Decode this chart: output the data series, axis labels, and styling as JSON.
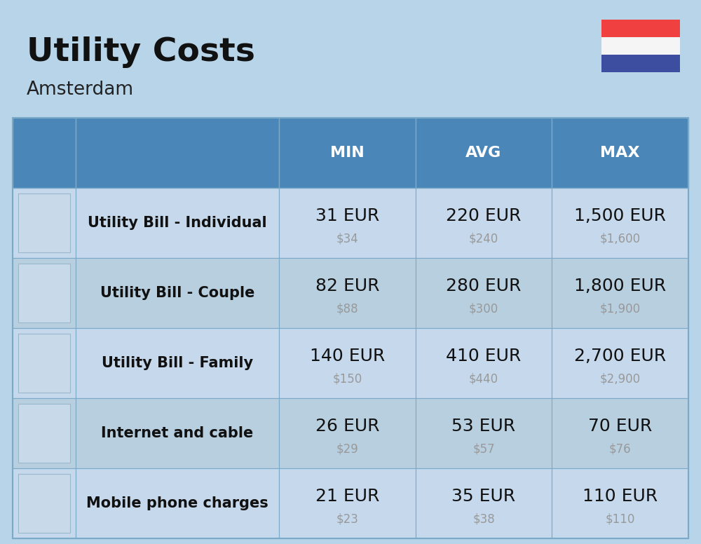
{
  "title": "Utility Costs",
  "subtitle": "Amsterdam",
  "bg_color": "#b8d4e8",
  "header_bg_color": "#4a86b8",
  "row_bg_even": "#c5d8ec",
  "row_bg_odd": "#b8cfe0",
  "header_text_color": "#ffffff",
  "label_text_color": "#111111",
  "value_text_color": "#111111",
  "subvalue_text_color": "#999999",
  "border_color": "#7aaac8",
  "rows": [
    {
      "label": "Utility Bill - Individual",
      "min_eur": "31 EUR",
      "min_usd": "$34",
      "avg_eur": "220 EUR",
      "avg_usd": "$240",
      "max_eur": "1,500 EUR",
      "max_usd": "$1,600",
      "icon": "⚡"
    },
    {
      "label": "Utility Bill - Couple",
      "min_eur": "82 EUR",
      "min_usd": "$88",
      "avg_eur": "280 EUR",
      "avg_usd": "$300",
      "max_eur": "1,800 EUR",
      "max_usd": "$1,900",
      "icon": "⚡"
    },
    {
      "label": "Utility Bill - Family",
      "min_eur": "140 EUR",
      "min_usd": "$150",
      "avg_eur": "410 EUR",
      "avg_usd": "$440",
      "max_eur": "2,700 EUR",
      "max_usd": "$2,900",
      "icon": "⚡"
    },
    {
      "label": "Internet and cable",
      "min_eur": "26 EUR",
      "min_usd": "$29",
      "avg_eur": "53 EUR",
      "avg_usd": "$57",
      "max_eur": "70 EUR",
      "max_usd": "$76",
      "icon": "📶"
    },
    {
      "label": "Mobile phone charges",
      "min_eur": "21 EUR",
      "min_usd": "$23",
      "avg_eur": "35 EUR",
      "avg_usd": "$38",
      "max_eur": "110 EUR",
      "max_usd": "$110",
      "icon": "📱"
    }
  ],
  "col_headers": [
    "MIN",
    "AVG",
    "MAX"
  ],
  "flag_red": "#f04040",
  "flag_white": "#f5f5f5",
  "flag_blue": "#3d4ea0",
  "title_fontsize": 34,
  "subtitle_fontsize": 19,
  "header_fontsize": 16,
  "label_fontsize": 15,
  "value_fontsize": 18,
  "subvalue_fontsize": 12,
  "icon_fontsize": 28
}
